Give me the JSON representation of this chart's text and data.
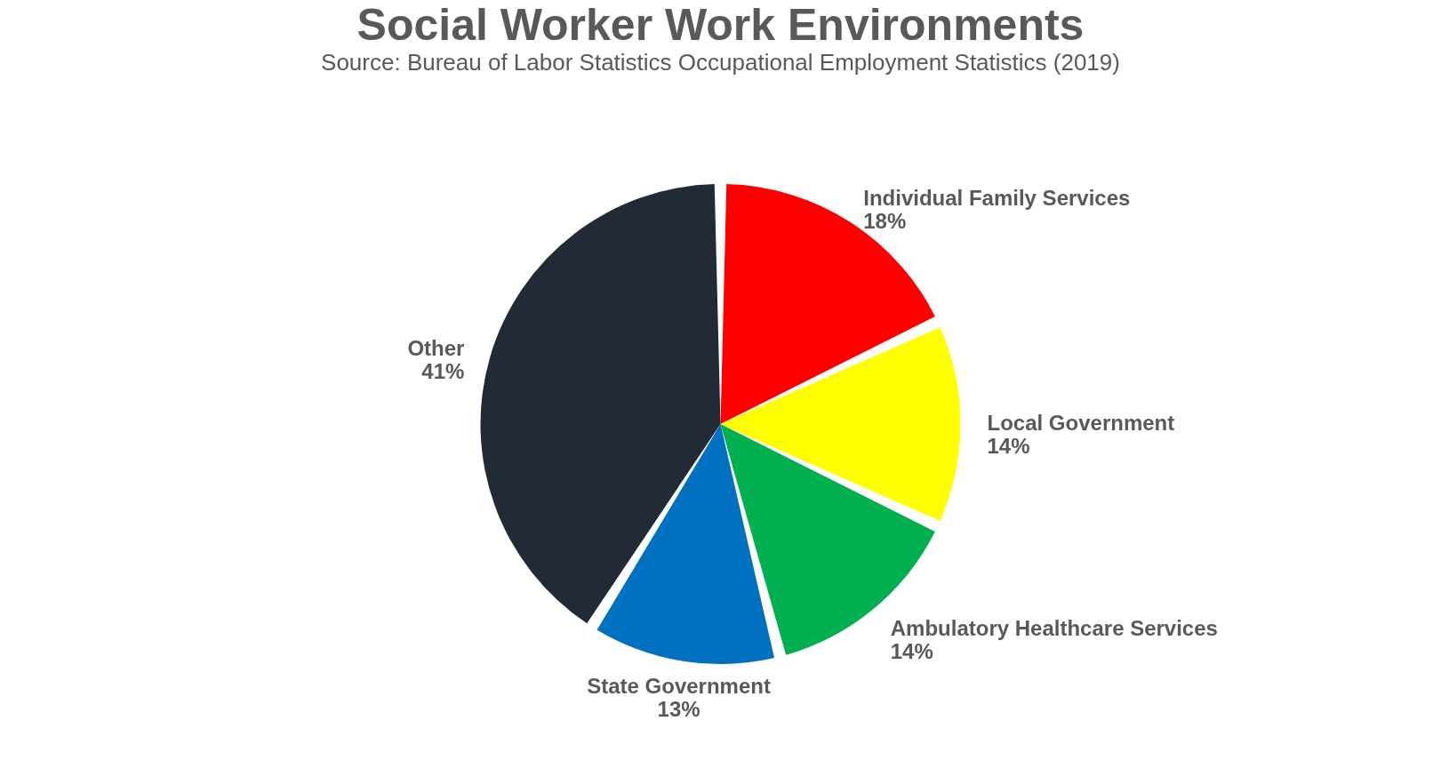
{
  "chart_data": {
    "type": "pie",
    "title": "Social Worker Work Environments",
    "subtitle": "Source: Bureau of Labor Statistics Occupational Employment Statistics (2019)",
    "categories": [
      "Individual Family Services",
      "Local Government",
      "Ambulatory Healthcare Services",
      "State Government",
      "Other"
    ],
    "values": [
      18,
      14,
      14,
      13,
      41
    ],
    "colors": [
      "#ff0000",
      "#ffff00",
      "#00b050",
      "#0070c0",
      "#222a35"
    ],
    "value_labels": [
      "18%",
      "14%",
      "14%",
      "13%",
      "41%"
    ],
    "legend": false
  }
}
